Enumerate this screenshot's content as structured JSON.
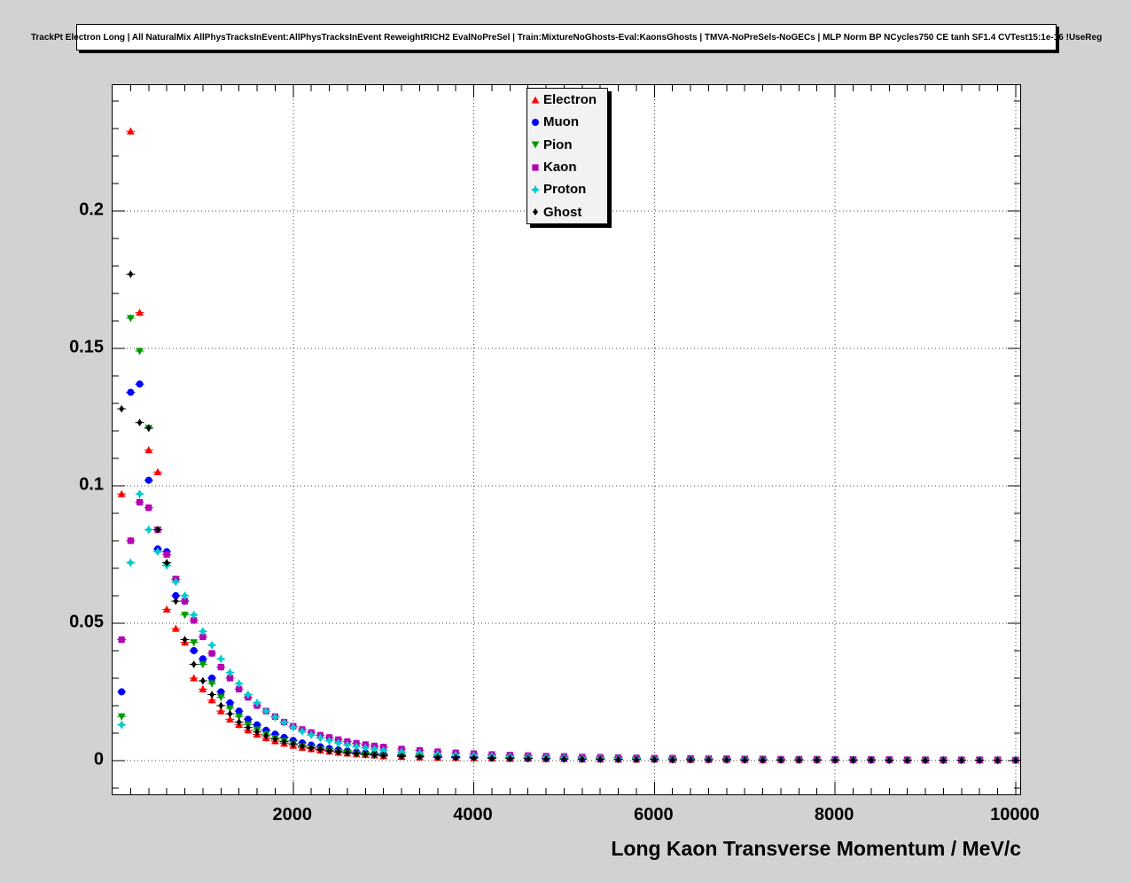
{
  "colors": {
    "canvas_bg": "#d2d2d2",
    "frame_bg": "#ffffff",
    "frame_border": "#000000",
    "grid": "#444444",
    "legend_bg": "#f2f2f2"
  },
  "chart_data": {
    "type": "scatter",
    "title": "TrackPt Electron Long | All NaturalMix AllPhysTracksInEvent:AllPhysTracksInEvent ReweightRICH2 EvalNoPreSel | Train:MixtureNoGhosts-Eval:KaonsGhosts | TMVA-NoPreSels-NoGECs | MLP Norm BP NCycles750 CE tanh SF1.4 CVTest15:1e-16 !UseReg",
    "xlabel": "Long Kaon Transverse Momentum / MeV/c",
    "ylabel": "",
    "xlim": [
      0,
      10050
    ],
    "ylim": [
      -0.0123,
      0.2458
    ],
    "grid": true,
    "grid_style": "dotted",
    "legend_position": "top-center-inside",
    "x_ticks": {
      "values": [
        2000,
        4000,
        6000,
        8000,
        10000
      ],
      "labels": [
        "2000",
        "4000",
        "6000",
        "8000",
        "10000"
      ],
      "minor_step": 200
    },
    "y_ticks": {
      "values": [
        0,
        0.05,
        0.1,
        0.15,
        0.2
      ],
      "labels": [
        "0",
        "0.05",
        "0.1",
        "0.15",
        "0.2"
      ],
      "minor_step": 0.01
    },
    "x": [
      100,
      200,
      300,
      400,
      500,
      600,
      700,
      800,
      900,
      1000,
      1100,
      1200,
      1300,
      1400,
      1500,
      1600,
      1700,
      1800,
      1900,
      2000,
      2100,
      2200,
      2300,
      2400,
      2500,
      2600,
      2700,
      2800,
      2900,
      3000,
      3200,
      3400,
      3600,
      3800,
      4000,
      4200,
      4400,
      4600,
      4800,
      5000,
      5200,
      5400,
      5600,
      5800,
      6000,
      6200,
      6400,
      6600,
      6800,
      7000,
      7200,
      7400,
      7600,
      7800,
      8000,
      8200,
      8400,
      8600,
      8800,
      9000,
      9200,
      9400,
      9600,
      9800,
      10000
    ],
    "series": [
      {
        "name": "Electron",
        "color": "#ff0000",
        "marker": "triangle-up",
        "values": [
          0.097,
          0.229,
          0.163,
          0.113,
          0.105,
          0.055,
          0.048,
          0.043,
          0.03,
          0.026,
          0.022,
          0.018,
          0.015,
          0.013,
          0.011,
          0.0095,
          0.0082,
          0.0071,
          0.0062,
          0.0054,
          0.0047,
          0.0042,
          0.0037,
          0.0033,
          0.0029,
          0.0026,
          0.0023,
          0.0021,
          0.0019,
          0.0016,
          0.0014,
          0.0012,
          0.0011,
          0.001,
          0.0009,
          0.0008,
          0.0007,
          0.0007,
          0.0006,
          0.0006,
          0.0005,
          0.0005,
          0.0004,
          0.0004,
          0.0004,
          0.0003,
          0.0003,
          0.0003,
          0.0003,
          0.0003,
          0.0002,
          0.0002,
          0.0002,
          0.0002,
          0.0002,
          0.0002,
          0.0002,
          0.0002,
          0.0001,
          0.0001,
          0.0001,
          0.0001,
          0.0001,
          0.0001,
          0.0001
        ]
      },
      {
        "name": "Muon",
        "color": "#0000ff",
        "marker": "circle",
        "values": [
          0.025,
          0.134,
          0.137,
          0.102,
          0.077,
          0.076,
          0.06,
          0.058,
          0.04,
          0.037,
          0.03,
          0.025,
          0.021,
          0.018,
          0.015,
          0.013,
          0.011,
          0.0096,
          0.0084,
          0.0073,
          0.0064,
          0.0056,
          0.005,
          0.0044,
          0.0039,
          0.0035,
          0.0031,
          0.0028,
          0.0025,
          0.0023,
          0.002,
          0.0018,
          0.0016,
          0.0014,
          0.0013,
          0.0011,
          0.001,
          0.0009,
          0.0009,
          0.0008,
          0.0007,
          0.0007,
          0.0006,
          0.0006,
          0.0005,
          0.0005,
          0.0004,
          0.0004,
          0.0004,
          0.0004,
          0.0003,
          0.0003,
          0.0003,
          0.0003,
          0.0003,
          0.0002,
          0.0002,
          0.0002,
          0.0002,
          0.0002,
          0.0002,
          0.0002,
          0.0002,
          0.0001,
          0.0001
        ]
      },
      {
        "name": "Pion",
        "color": "#009900",
        "marker": "triangle-down",
        "values": [
          0.016,
          0.161,
          0.149,
          0.121,
          0.084,
          0.071,
          0.066,
          0.053,
          0.043,
          0.035,
          0.028,
          0.023,
          0.019,
          0.016,
          0.013,
          0.0112,
          0.0096,
          0.0082,
          0.0071,
          0.0061,
          0.0053,
          0.0046,
          0.004,
          0.0035,
          0.0031,
          0.0027,
          0.0024,
          0.0021,
          0.0019,
          0.0017,
          0.0015,
          0.0013,
          0.0011,
          0.001,
          0.0009,
          0.0008,
          0.0007,
          0.0007,
          0.0006,
          0.0005,
          0.0005,
          0.0004,
          0.0004,
          0.0004,
          0.0003,
          0.0003,
          0.0003,
          0.0003,
          0.0002,
          0.0002,
          0.0002,
          0.0002,
          0.0002,
          0.0002,
          0.0001,
          0.0001,
          0.0001,
          0.0001,
          0.0001,
          0.0001,
          0.0001,
          0.0001,
          0.0001,
          0.0001,
          0.0001
        ]
      },
      {
        "name": "Kaon",
        "color": "#b300b3",
        "marker": "square",
        "values": [
          0.044,
          0.08,
          0.094,
          0.092,
          0.084,
          0.075,
          0.066,
          0.058,
          0.051,
          0.045,
          0.039,
          0.034,
          0.03,
          0.026,
          0.023,
          0.02,
          0.018,
          0.016,
          0.014,
          0.0125,
          0.0113,
          0.0102,
          0.0092,
          0.0084,
          0.0076,
          0.0069,
          0.0063,
          0.0058,
          0.0053,
          0.0049,
          0.0042,
          0.0037,
          0.0032,
          0.0028,
          0.0025,
          0.0022,
          0.002,
          0.0018,
          0.0016,
          0.0015,
          0.0013,
          0.0012,
          0.0011,
          0.001,
          0.0009,
          0.0009,
          0.0008,
          0.0007,
          0.0007,
          0.0006,
          0.0006,
          0.0005,
          0.0005,
          0.0005,
          0.0004,
          0.0004,
          0.0004,
          0.0004,
          0.0003,
          0.0003,
          0.0003,
          0.0003,
          0.0003,
          0.0003,
          0.0002
        ]
      },
      {
        "name": "Proton",
        "color": "#00cccc",
        "marker": "star4",
        "values": [
          0.013,
          0.072,
          0.097,
          0.084,
          0.076,
          0.071,
          0.065,
          0.06,
          0.053,
          0.047,
          0.042,
          0.037,
          0.032,
          0.028,
          0.024,
          0.021,
          0.018,
          0.0158,
          0.0138,
          0.0121,
          0.0106,
          0.0093,
          0.0082,
          0.0072,
          0.0064,
          0.0057,
          0.0051,
          0.0046,
          0.0041,
          0.0037,
          0.0031,
          0.0027,
          0.0023,
          0.002,
          0.0018,
          0.0016,
          0.0014,
          0.0012,
          0.0011,
          0.001,
          0.0009,
          0.0008,
          0.0007,
          0.0007,
          0.0006,
          0.0005,
          0.0005,
          0.0005,
          0.0004,
          0.0004,
          0.0004,
          0.0003,
          0.0003,
          0.0003,
          0.0003,
          0.0003,
          0.0002,
          0.0002,
          0.0002,
          0.0002,
          0.0002,
          0.0002,
          0.0002,
          0.0002,
          0.0001
        ]
      },
      {
        "name": "Ghost",
        "color": "#000000",
        "marker": "diamond",
        "values": [
          0.128,
          0.177,
          0.123,
          0.121,
          0.084,
          0.072,
          0.058,
          0.044,
          0.035,
          0.029,
          0.024,
          0.02,
          0.017,
          0.014,
          0.012,
          0.0104,
          0.009,
          0.0078,
          0.0068,
          0.006,
          0.0052,
          0.0046,
          0.0041,
          0.0036,
          0.0032,
          0.0029,
          0.0026,
          0.0023,
          0.0021,
          0.0019,
          0.0016,
          0.0014,
          0.0012,
          0.0011,
          0.001,
          0.0009,
          0.0008,
          0.0007,
          0.0006,
          0.0006,
          0.0005,
          0.0005,
          0.0004,
          0.0004,
          0.0004,
          0.0003,
          0.0003,
          0.0003,
          0.0003,
          0.0002,
          0.0002,
          0.0002,
          0.0002,
          0.0002,
          0.0002,
          0.0002,
          0.0002,
          0.0001,
          0.0001,
          0.0001,
          0.0001,
          0.0001,
          0.0001,
          0.0001,
          0.0001
        ]
      }
    ]
  }
}
